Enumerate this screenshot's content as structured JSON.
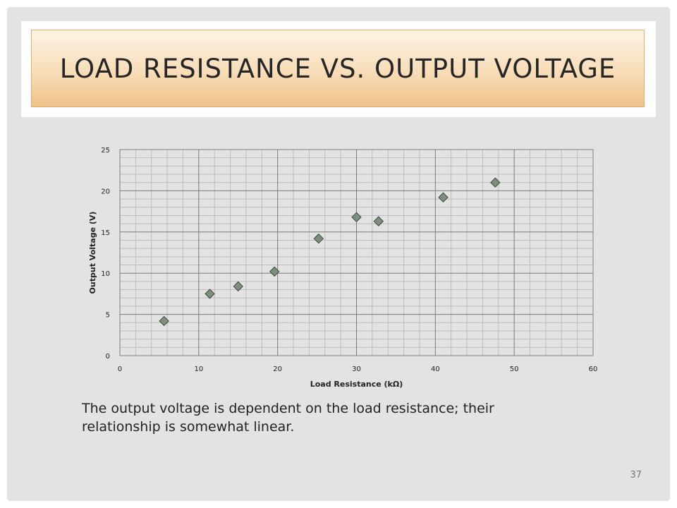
{
  "slide": {
    "title": "LOAD RESISTANCE VS. OUTPUT VOLTAGE",
    "caption": "The output voltage is dependent on the load resistance; their relationship is somewhat linear.",
    "page_number": "37"
  },
  "chart_data": {
    "type": "scatter",
    "title": "",
    "xlabel": "Load Resistance (kΩ)",
    "ylabel": "Output Voltage (V)",
    "xlim": [
      0,
      60
    ],
    "ylim": [
      0,
      25
    ],
    "xticks": [
      0,
      10,
      20,
      30,
      40,
      50,
      60
    ],
    "yticks": [
      0,
      5,
      10,
      15,
      20,
      25
    ],
    "grid": true,
    "legend": "none",
    "marker": "diamond",
    "marker_color": "#7f8f7f",
    "series": [
      {
        "x": [
          5.6,
          11.4,
          15.0,
          19.6,
          25.2,
          30.0,
          32.8,
          41.0,
          47.6
        ],
        "y": [
          4.2,
          7.5,
          8.4,
          10.2,
          14.2,
          16.8,
          16.3,
          19.2,
          21.0
        ]
      }
    ]
  }
}
